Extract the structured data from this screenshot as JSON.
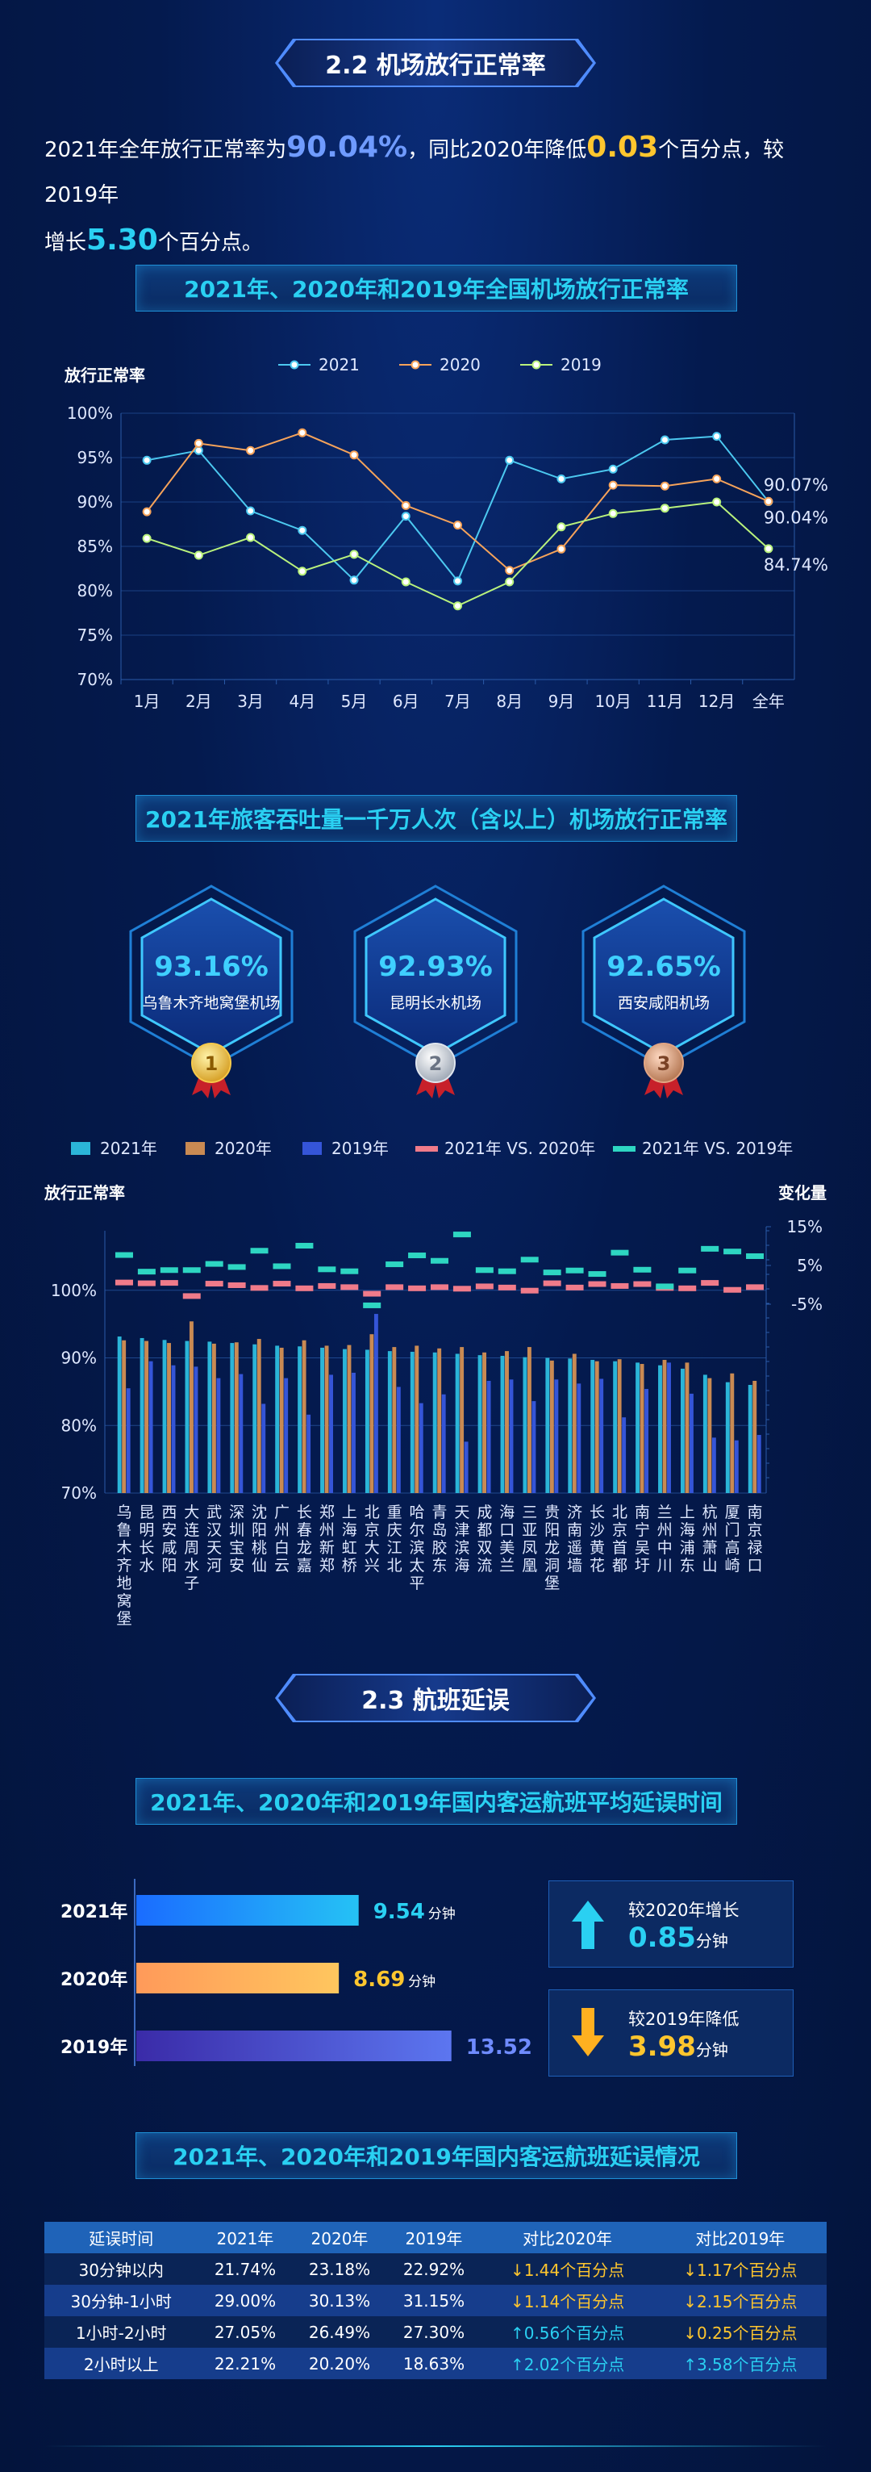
{
  "section22": {
    "title": "2.2 机场放行正常率"
  },
  "intro": {
    "p1": "2021年全年放行正常率为",
    "v1": "90.04%",
    "p2": "，同比2020年降低",
    "v2": "0.03",
    "p3": "个百分点，较2019年",
    "p4": "增长",
    "v3": "5.30",
    "p5": "个百分点。"
  },
  "chart1_title": "2021年、2020年和2019年全国机场放行正常率",
  "chart2_title": "2021年旅客吞吐量一千万人次（含以上）机场放行正常率",
  "top3": [
    {
      "rate": "93.16%",
      "name": "乌鲁木齐地窝堡机场",
      "rank": "1"
    },
    {
      "rate": "92.93%",
      "name": "昆明长水机场",
      "rank": "2"
    },
    {
      "rate": "92.65%",
      "name": "西安咸阳机场",
      "rank": "3"
    }
  ],
  "section23": {
    "title": "2.3 航班延误"
  },
  "chart3_title": "2021年、2020年和2019年国内客运航班平均延误时间",
  "delay_cards": [
    {
      "label": "较2020年增长",
      "value": "0.85",
      "unit": "分钟",
      "direction": "up"
    },
    {
      "label": "较2019年降低",
      "value": "3.98",
      "unit": "分钟",
      "direction": "down"
    }
  ],
  "chart4_title": "2021年、2020年和2019年国内客运航班延误情况",
  "delay_table": {
    "headers": [
      "延误时间",
      "2021年",
      "2020年",
      "2019年",
      "对比2020年",
      "对比2019年"
    ],
    "rows": [
      [
        "30分钟以内",
        "21.74%",
        "23.18%",
        "22.92%",
        "↓1.44个百分点",
        "↓1.17个百分点"
      ],
      [
        "30分钟-1小时",
        "29.00%",
        "30.13%",
        "31.15%",
        "↓1.14个百分点",
        "↓2.15个百分点"
      ],
      [
        "1小时-2小时",
        "27.05%",
        "26.49%",
        "27.30%",
        "↑0.56个百分点",
        "↓0.25个百分点"
      ],
      [
        "2小时以上",
        "22.21%",
        "20.20%",
        "18.63%",
        "↑2.02个百分点",
        "↑3.58个百分点"
      ]
    ]
  },
  "colors": {
    "c2021": "#4cc9f0",
    "c2020": "#f6a35a",
    "c2019": "#b9f27c",
    "accent": "#2ad0f2",
    "yellow": "#ffc62e"
  },
  "chart_data": [
    {
      "type": "line",
      "title": "2021年、2020年和2019年全国机场放行正常率",
      "ylabel": "放行正常率",
      "categories": [
        "1月",
        "2月",
        "3月",
        "4月",
        "5月",
        "6月",
        "7月",
        "8月",
        "9月",
        "10月",
        "11月",
        "12月",
        "全年"
      ],
      "ylim": [
        70,
        100
      ],
      "yticks": [
        "70%",
        "75%",
        "80%",
        "85%",
        "90%",
        "95%",
        "100%"
      ],
      "legend": "top",
      "end_labels": [
        "90.07%",
        "90.04%",
        "84.74%"
      ],
      "series": [
        {
          "name": "2021",
          "color": "#4cc9f0",
          "values": [
            94.7,
            95.8,
            89.0,
            86.8,
            81.2,
            88.4,
            81.1,
            94.7,
            92.6,
            93.7,
            97.0,
            97.4,
            90.04
          ]
        },
        {
          "name": "2020",
          "color": "#f6a35a",
          "values": [
            88.9,
            96.6,
            95.8,
            97.8,
            95.3,
            89.6,
            87.4,
            82.3,
            84.7,
            91.9,
            91.8,
            92.6,
            90.07
          ]
        },
        {
          "name": "2019",
          "color": "#b9f27c",
          "values": [
            85.9,
            84.0,
            86.0,
            82.2,
            84.1,
            81.0,
            78.3,
            81.0,
            87.2,
            88.7,
            89.3,
            90.0,
            84.74
          ]
        }
      ]
    },
    {
      "type": "bar",
      "title": "2021年旅客吞吐量一千万人次（含以上）机场放行正常率",
      "ylabel": "放行正常率",
      "y2label": "变化量",
      "ylim": [
        70,
        110
      ],
      "yticks": [
        "70%",
        "80%",
        "90%",
        "100%"
      ],
      "y2ticks": [
        "-5%",
        "5%",
        "15%"
      ],
      "legend": "top",
      "categories": [
        "乌鲁木齐地窝堡",
        "昆明长水",
        "西安咸阳",
        "大连周水子",
        "武汉天河",
        "深圳宝安",
        "沈阳桃仙",
        "广州白云",
        "长春龙嘉",
        "郑州新郑",
        "上海虹桥",
        "北京大兴",
        "重庆江北",
        "哈尔滨太平",
        "青岛胶东",
        "天津滨海",
        "成都双流",
        "海口美兰",
        "三亚凤凰",
        "贵阳龙洞堡",
        "济南遥墙",
        "长沙黄花",
        "北京首都",
        "南宁吴圩",
        "兰州中川",
        "上海浦东",
        "杭州萧山",
        "厦门高崎",
        "南京禄口"
      ],
      "series": [
        {
          "name": "2021年",
          "color": "#2bb5d8",
          "values": [
            93.16,
            92.93,
            92.65,
            92.5,
            92.4,
            92.2,
            92.0,
            91.8,
            91.7,
            91.5,
            91.3,
            91.2,
            91.0,
            90.9,
            90.8,
            90.6,
            90.4,
            90.3,
            90.1,
            90.0,
            89.9,
            89.7,
            89.5,
            89.3,
            88.9,
            88.4,
            87.5,
            86.4,
            86.0
          ]
        },
        {
          "name": "2020年",
          "color": "#c98a53",
          "values": [
            92.6,
            92.5,
            92.2,
            95.4,
            92.1,
            92.3,
            92.8,
            91.5,
            92.6,
            91.8,
            91.9,
            93.5,
            91.6,
            91.8,
            91.4,
            91.6,
            90.8,
            91.0,
            91.6,
            89.6,
            90.6,
            89.5,
            89.8,
            89.1,
            89.7,
            89.3,
            87.0,
            87.7,
            86.6
          ]
        },
        {
          "name": "2019年",
          "color": "#3555d8",
          "values": [
            85.5,
            89.5,
            88.9,
            88.7,
            87.0,
            87.6,
            83.2,
            87.0,
            81.6,
            87.5,
            87.8,
            96.5,
            85.7,
            83.3,
            84.6,
            77.6,
            86.6,
            86.8,
            83.6,
            86.8,
            86.2,
            86.9,
            81.2,
            85.4,
            89.3,
            84.7,
            78.2,
            77.8,
            78.6
          ]
        },
        {
          "name": "2021年 VS. 2020年",
          "color": "#f07b8a",
          "values": [
            0.6,
            0.4,
            0.5,
            -2.9,
            0.3,
            -0.1,
            -0.8,
            0.3,
            -0.9,
            -0.3,
            -0.6,
            -2.3,
            -0.6,
            -0.9,
            -0.6,
            -1.0,
            -0.4,
            -0.7,
            -1.5,
            0.4,
            -0.7,
            0.2,
            -0.3,
            0.2,
            -0.8,
            -0.9,
            0.5,
            -1.3,
            -0.6
          ]
        },
        {
          "name": "2021年 VS. 2019年",
          "color": "#2ed6c2",
          "values": [
            7.7,
            3.4,
            3.8,
            3.8,
            5.4,
            4.6,
            8.8,
            4.8,
            10.1,
            4.0,
            3.5,
            -5.3,
            5.3,
            7.6,
            6.2,
            13.0,
            3.8,
            3.5,
            6.5,
            3.2,
            3.7,
            2.8,
            8.3,
            3.9,
            -0.4,
            3.7,
            9.3,
            8.6,
            7.4
          ]
        }
      ]
    },
    {
      "type": "bar",
      "orientation": "horizontal",
      "title": "2021年、2020年和2019年国内客运航班平均延误时间",
      "categories": [
        "2021年",
        "2020年",
        "2019年"
      ],
      "values": [
        9.54,
        8.69,
        13.52
      ],
      "value_labels": [
        "9.54",
        "8.69",
        "13.52"
      ],
      "unit": "分钟",
      "colors": [
        "#2a8cff",
        "#ffb35e",
        "#5c6ee8"
      ]
    },
    {
      "type": "table",
      "title": "2021年、2020年和2019年国内客运航班延误情况"
    }
  ]
}
